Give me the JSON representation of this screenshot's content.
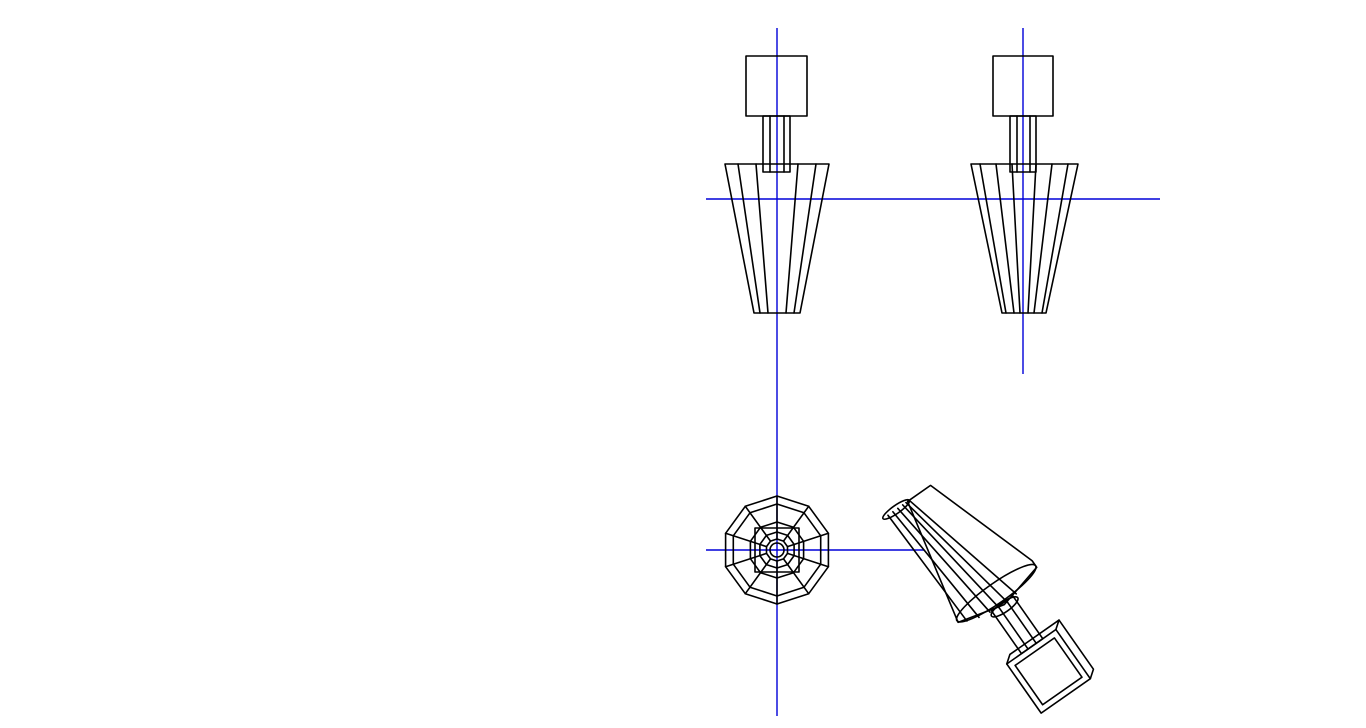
{
  "colors": {
    "background": "#ffffff",
    "wireframe": "#000000",
    "axis": "#0000d8"
  },
  "views": [
    {
      "key": "front",
      "description_name": "front-elevation-view"
    },
    {
      "key": "side",
      "description_name": "side-elevation-view"
    },
    {
      "key": "top",
      "description_name": "top-plan-view"
    },
    {
      "key": "iso",
      "description_name": "isometric-view"
    }
  ]
}
